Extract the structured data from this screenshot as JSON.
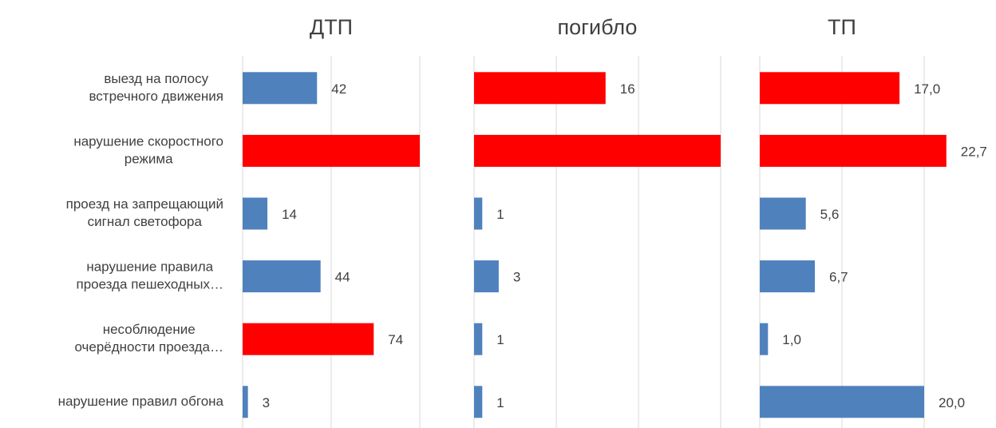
{
  "chart_data": [
    {
      "type": "hbar",
      "title": "ДТП",
      "categories": [
        [
          "выезд на полосу",
          "встречного движения"
        ],
        [
          "нарушение скоростного",
          "режима"
        ],
        [
          "проезд на запрещающий",
          "сигнал светофора"
        ],
        [
          "нарушение правила",
          "проезда пешеходных…"
        ],
        [
          "несоблюдение",
          "очерёдности проезда…"
        ],
        [
          "нарушение правил обгона"
        ]
      ],
      "values": [
        42,
        100,
        14,
        44,
        74,
        3
      ],
      "value_labels": [
        "42",
        null,
        "14",
        "44",
        "74",
        "3"
      ],
      "colors": [
        "#4f81bd",
        "#ff0000",
        "#4f81bd",
        "#4f81bd",
        "#ff0000",
        "#4f81bd"
      ],
      "xlim": [
        0,
        100
      ],
      "xticks": [
        0,
        50,
        100
      ],
      "grid": true
    },
    {
      "type": "hbar",
      "title": "погибло",
      "values": [
        16,
        30,
        1,
        3,
        1,
        1
      ],
      "value_labels": [
        "16",
        null,
        "1",
        "3",
        "1",
        "1"
      ],
      "colors": [
        "#ff0000",
        "#ff0000",
        "#4f81bd",
        "#4f81bd",
        "#4f81bd",
        "#4f81bd"
      ],
      "xlim": [
        0,
        30
      ],
      "xticks": [
        0,
        10,
        20,
        30
      ],
      "grid": true
    },
    {
      "type": "hbar",
      "title": "ТП",
      "values": [
        17.0,
        22.7,
        5.6,
        6.7,
        1.0,
        20.0
      ],
      "value_labels": [
        "17,0",
        "22,7",
        "5,6",
        "6,7",
        "1,0",
        "20,0"
      ],
      "colors": [
        "#ff0000",
        "#ff0000",
        "#4f81bd",
        "#4f81bd",
        "#4f81bd",
        "#4f81bd"
      ],
      "xlim": [
        0,
        20
      ],
      "xticks": [
        0,
        10,
        20
      ],
      "grid": true
    }
  ]
}
